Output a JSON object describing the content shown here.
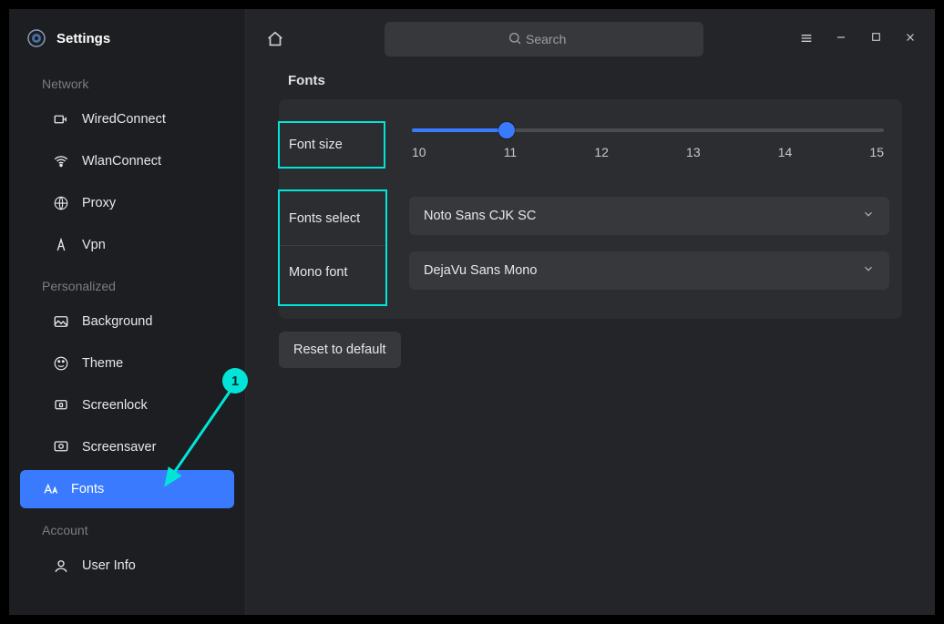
{
  "app_title": "Settings",
  "search_placeholder": "Search",
  "sections": {
    "network": {
      "label": "Network",
      "items": [
        {
          "key": "wired",
          "label": "WiredConnect"
        },
        {
          "key": "wlan",
          "label": "WlanConnect"
        },
        {
          "key": "proxy",
          "label": "Proxy"
        },
        {
          "key": "vpn",
          "label": "Vpn"
        }
      ]
    },
    "personalized": {
      "label": "Personalized",
      "items": [
        {
          "key": "background",
          "label": "Background"
        },
        {
          "key": "theme",
          "label": "Theme"
        },
        {
          "key": "screenlock",
          "label": "Screenlock"
        },
        {
          "key": "screensaver",
          "label": "Screensaver"
        },
        {
          "key": "fonts",
          "label": "Fonts",
          "active": true
        }
      ]
    },
    "account": {
      "label": "Account",
      "items": [
        {
          "key": "userinfo",
          "label": "User Info"
        }
      ]
    }
  },
  "page": {
    "title": "Fonts",
    "font_size": {
      "label": "Font size",
      "min": 10,
      "max": 15,
      "value": 11,
      "ticks": [
        "10",
        "11",
        "12",
        "13",
        "14",
        "15"
      ]
    },
    "font_select": {
      "label": "Fonts select",
      "value": "Noto Sans CJK SC"
    },
    "mono_font": {
      "label": "Mono font",
      "value": "DejaVu Sans Mono"
    },
    "reset_label": "Reset to default"
  },
  "annotation": {
    "badge_text": "1",
    "badge_color": "#00e5d8",
    "arrow_color": "#00e5d8",
    "highlight_color": "#00e5d8"
  },
  "colors": {
    "accent": "#3a7afe",
    "bg": "#232529",
    "panel": "#2b2d31",
    "sidebar": "#1c1e21",
    "text": "#e8e8e8",
    "muted": "#7a7d82",
    "input_bg": "#36383c"
  }
}
